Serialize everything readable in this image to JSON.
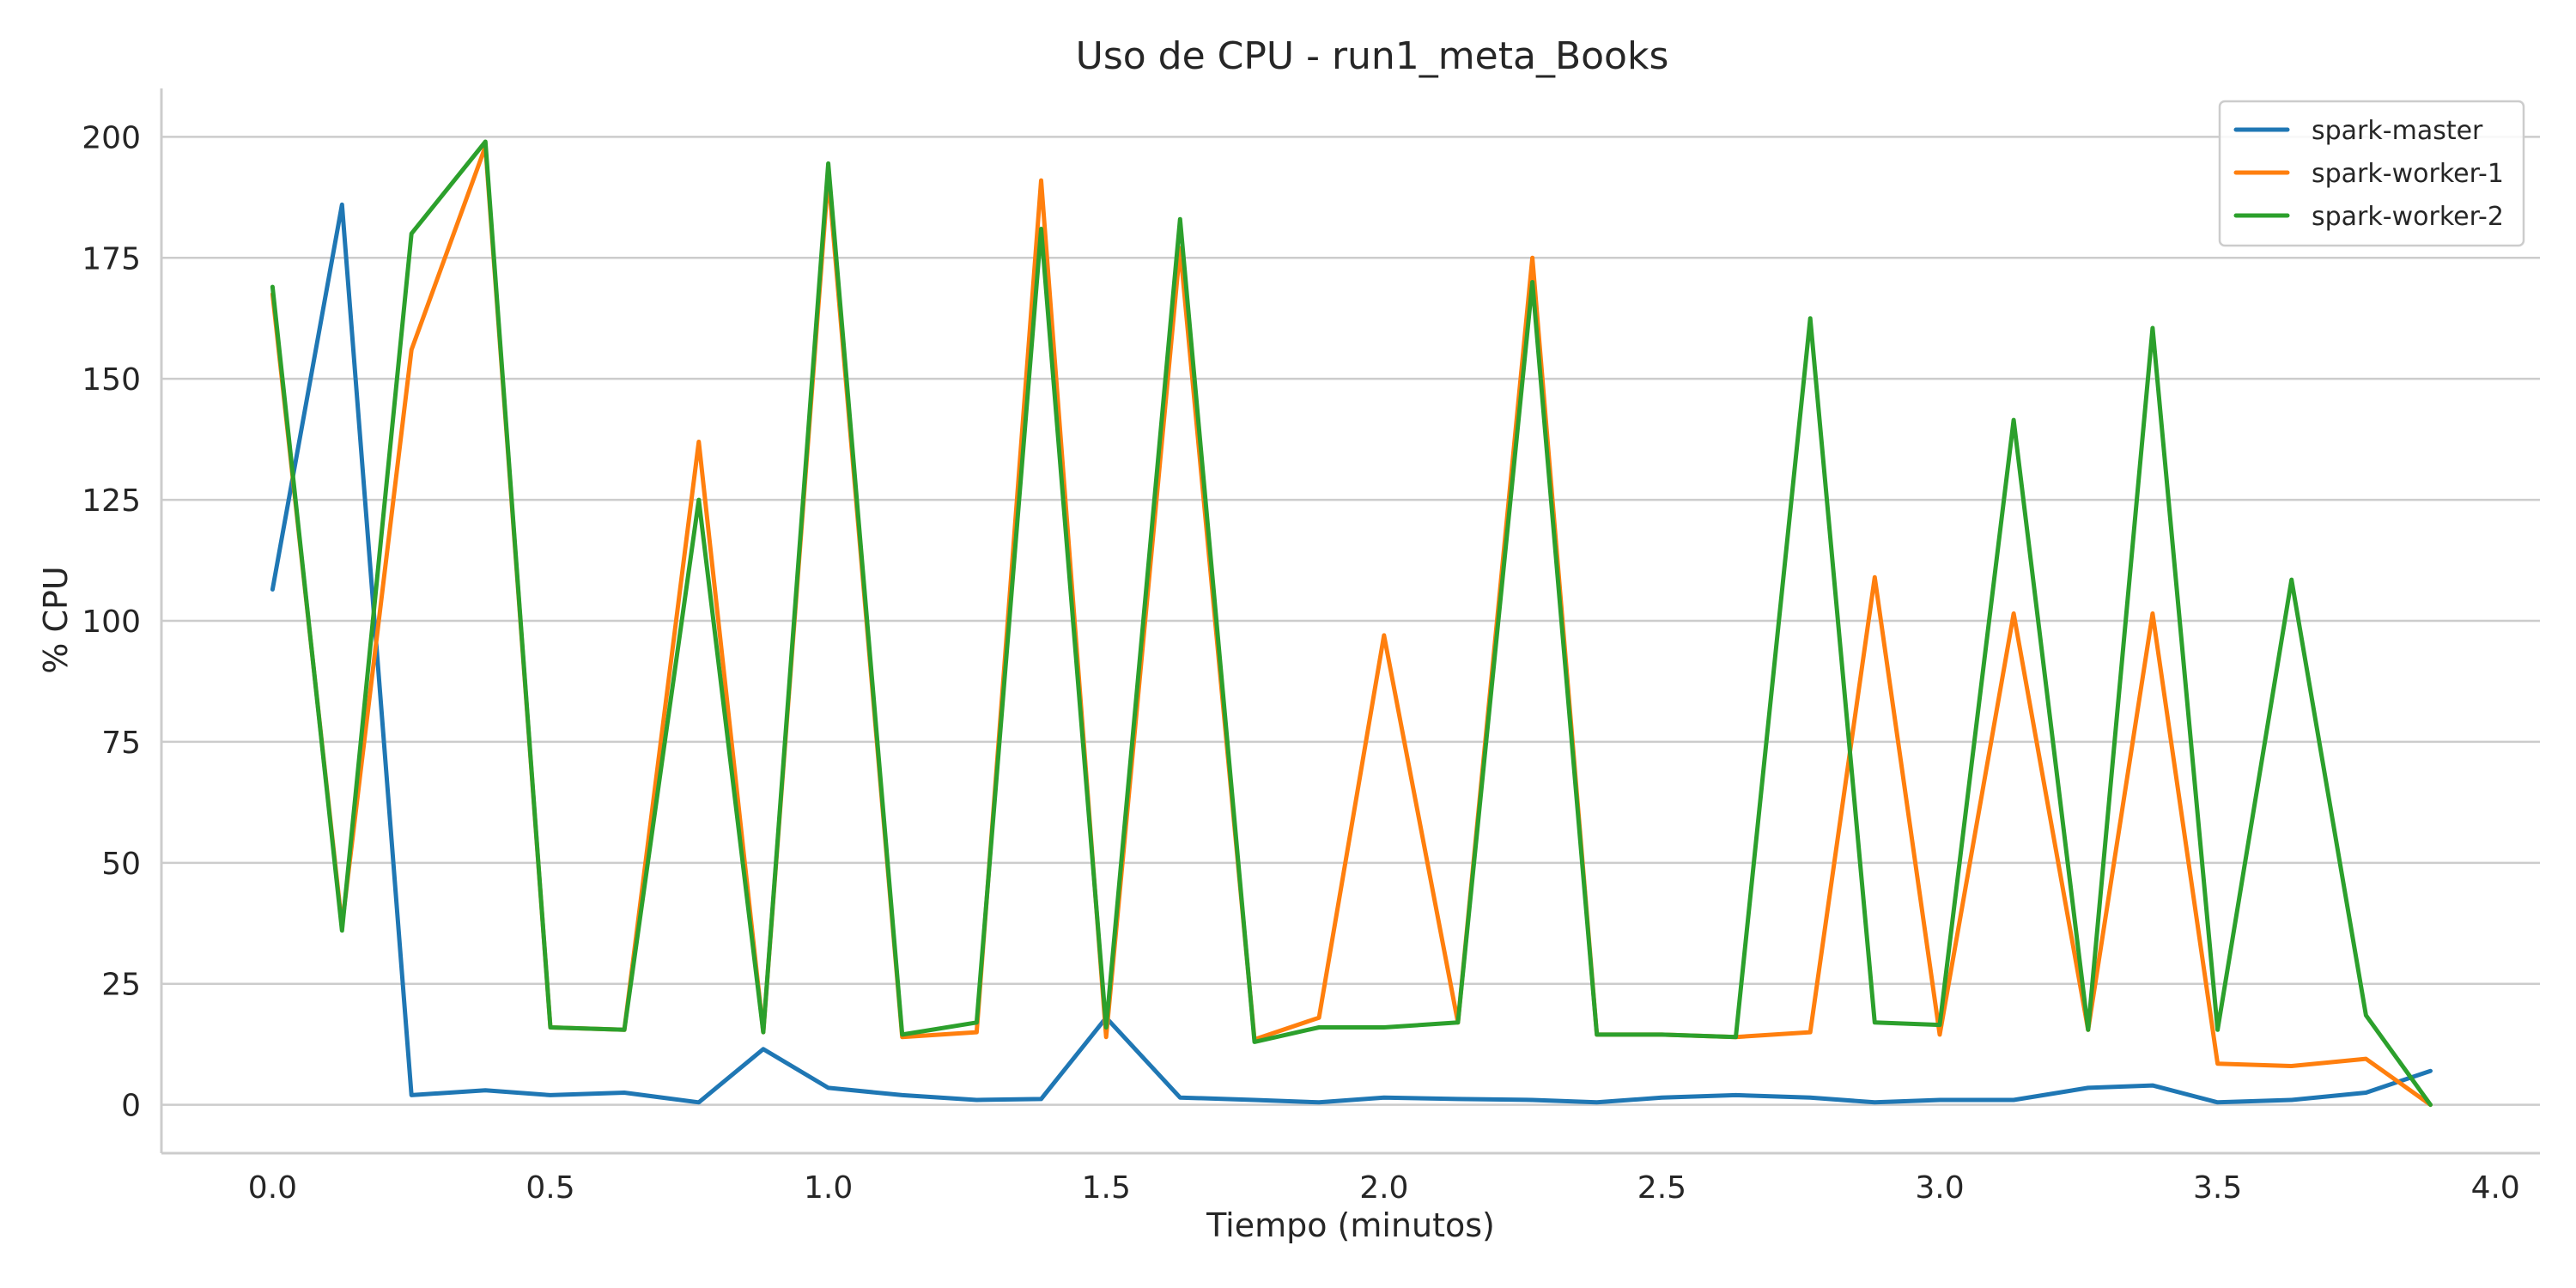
{
  "chart_data": {
    "type": "line",
    "title": "Uso de CPU - run1_meta_Books",
    "xlabel": "Tiempo (minutos)",
    "ylabel": "% CPU",
    "xlim": [
      -0.2,
      4.08
    ],
    "ylim": [
      -10,
      210
    ],
    "xticks": [
      0.0,
      0.5,
      1.0,
      1.5,
      2.0,
      2.5,
      3.0,
      3.5,
      4.0
    ],
    "xtick_labels": [
      "0.0",
      "0.5",
      "1.0",
      "1.5",
      "2.0",
      "2.5",
      "3.0",
      "3.5",
      "4.0"
    ],
    "yticks": [
      0,
      25,
      50,
      75,
      100,
      125,
      150,
      175,
      200
    ],
    "ytick_labels": [
      "0",
      "25",
      "50",
      "75",
      "100",
      "125",
      "150",
      "175",
      "200"
    ],
    "grid": "horizontal",
    "legend_position": "top-right",
    "x": [
      0.0,
      0.125,
      0.25,
      0.383,
      0.5,
      0.633,
      0.767,
      0.883,
      1.0,
      1.133,
      1.267,
      1.383,
      1.5,
      1.633,
      1.767,
      1.883,
      2.0,
      2.133,
      2.267,
      2.383,
      2.5,
      2.633,
      2.767,
      2.883,
      3.0,
      3.133,
      3.267,
      3.383,
      3.5,
      3.633,
      3.767,
      3.883
    ],
    "series": [
      {
        "name": "spark-master",
        "color": "#1f77b4",
        "values": [
          106.5,
          186,
          2,
          3,
          2,
          2.5,
          0.5,
          11.5,
          3.5,
          2,
          1,
          1.2,
          18,
          1.5,
          1,
          0.5,
          1.5,
          1.2,
          1,
          0.5,
          1.5,
          2,
          1.5,
          0.5,
          1,
          1,
          3.5,
          4,
          0.5,
          1,
          2.5,
          7
        ]
      },
      {
        "name": "spark-worker-1",
        "color": "#ff7f0e",
        "values": [
          167.5,
          37,
          156,
          198,
          16,
          15.5,
          137,
          15,
          192,
          14,
          15,
          191,
          14,
          177,
          13.5,
          18,
          97,
          17,
          175,
          14.5,
          14.5,
          14,
          15,
          109,
          14.5,
          101.5,
          15.5,
          101.5,
          8.5,
          8,
          9.5,
          0
        ]
      },
      {
        "name": "spark-worker-2",
        "color": "#2ca02c",
        "values": [
          169,
          36,
          180,
          199,
          16,
          15.5,
          125,
          15,
          194.5,
          14.5,
          17,
          181,
          16,
          183,
          13,
          16,
          16,
          17,
          170,
          14.5,
          14.5,
          14,
          162.5,
          17,
          16.5,
          141.5,
          15.5,
          160.5,
          15.5,
          108.5,
          18.5,
          0
        ]
      }
    ]
  }
}
